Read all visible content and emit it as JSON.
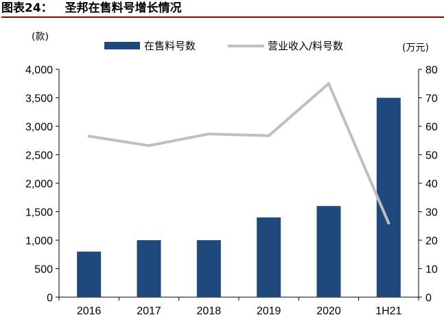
{
  "figure": {
    "label": "图表24：",
    "title": "圣邦在售料号增长情况"
  },
  "chart_data": {
    "type": "bar+line",
    "categories": [
      "2016",
      "2017",
      "2018",
      "2019",
      "2020",
      "1H21"
    ],
    "series": [
      {
        "name": "在售料号数",
        "type": "bar",
        "axis": "left",
        "color": "#1f497d",
        "values": [
          800,
          1000,
          1000,
          1400,
          1600,
          3500
        ]
      },
      {
        "name": "营业收入/料号数",
        "type": "line",
        "axis": "right",
        "color": "#bfbfbf",
        "values": [
          56.5,
          53.2,
          57.3,
          56.7,
          75.0,
          26.0
        ]
      }
    ],
    "left_axis": {
      "unit": "(款)",
      "ylim": [
        0,
        4000
      ],
      "ticks": [
        "0",
        "500",
        "1,000",
        "1,500",
        "2,000",
        "2,500",
        "3,000",
        "3,500",
        "4,000"
      ]
    },
    "right_axis": {
      "unit": "(万元)",
      "ylim": [
        0,
        80
      ],
      "ticks": [
        "0",
        "10",
        "20",
        "30",
        "40",
        "50",
        "60",
        "70",
        "80"
      ]
    },
    "grid": false,
    "legend_position": "top"
  }
}
